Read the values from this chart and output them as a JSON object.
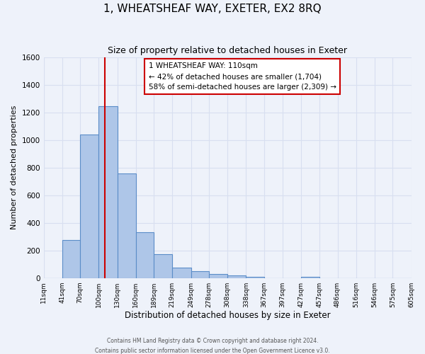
{
  "title": "1, WHEATSHEAF WAY, EXETER, EX2 8RQ",
  "subtitle": "Size of property relative to detached houses in Exeter",
  "xlabel": "Distribution of detached houses by size in Exeter",
  "ylabel": "Number of detached properties",
  "bar_values": [
    0,
    275,
    1040,
    1245,
    755,
    330,
    175,
    75,
    50,
    30,
    20,
    10,
    0,
    0,
    10,
    0,
    0,
    0,
    0,
    0
  ],
  "bin_edges": [
    11,
    41,
    70,
    100,
    130,
    160,
    189,
    219,
    249,
    278,
    308,
    338,
    367,
    397,
    427,
    457,
    486,
    516,
    546,
    575,
    605
  ],
  "bin_labels": [
    "11sqm",
    "41sqm",
    "70sqm",
    "100sqm",
    "130sqm",
    "160sqm",
    "189sqm",
    "219sqm",
    "249sqm",
    "278sqm",
    "308sqm",
    "338sqm",
    "367sqm",
    "397sqm",
    "427sqm",
    "457sqm",
    "486sqm",
    "516sqm",
    "546sqm",
    "575sqm",
    "605sqm"
  ],
  "bar_color": "#aec6e8",
  "bar_edge_color": "#5b8dc8",
  "property_line_x": 110,
  "property_line_color": "#cc0000",
  "ylim": [
    0,
    1600
  ],
  "yticks": [
    0,
    200,
    400,
    600,
    800,
    1000,
    1200,
    1400,
    1600
  ],
  "annotation_text": "1 WHEATSHEAF WAY: 110sqm\n← 42% of detached houses are smaller (1,704)\n58% of semi-detached houses are larger (2,309) →",
  "annotation_box_color": "#ffffff",
  "annotation_box_edge": "#cc0000",
  "footer_line1": "Contains HM Land Registry data © Crown copyright and database right 2024.",
  "footer_line2": "Contains public sector information licensed under the Open Government Licence v3.0.",
  "background_color": "#eef2fa",
  "grid_color": "#d8dff0",
  "plot_bg_color": "#eef2fa"
}
